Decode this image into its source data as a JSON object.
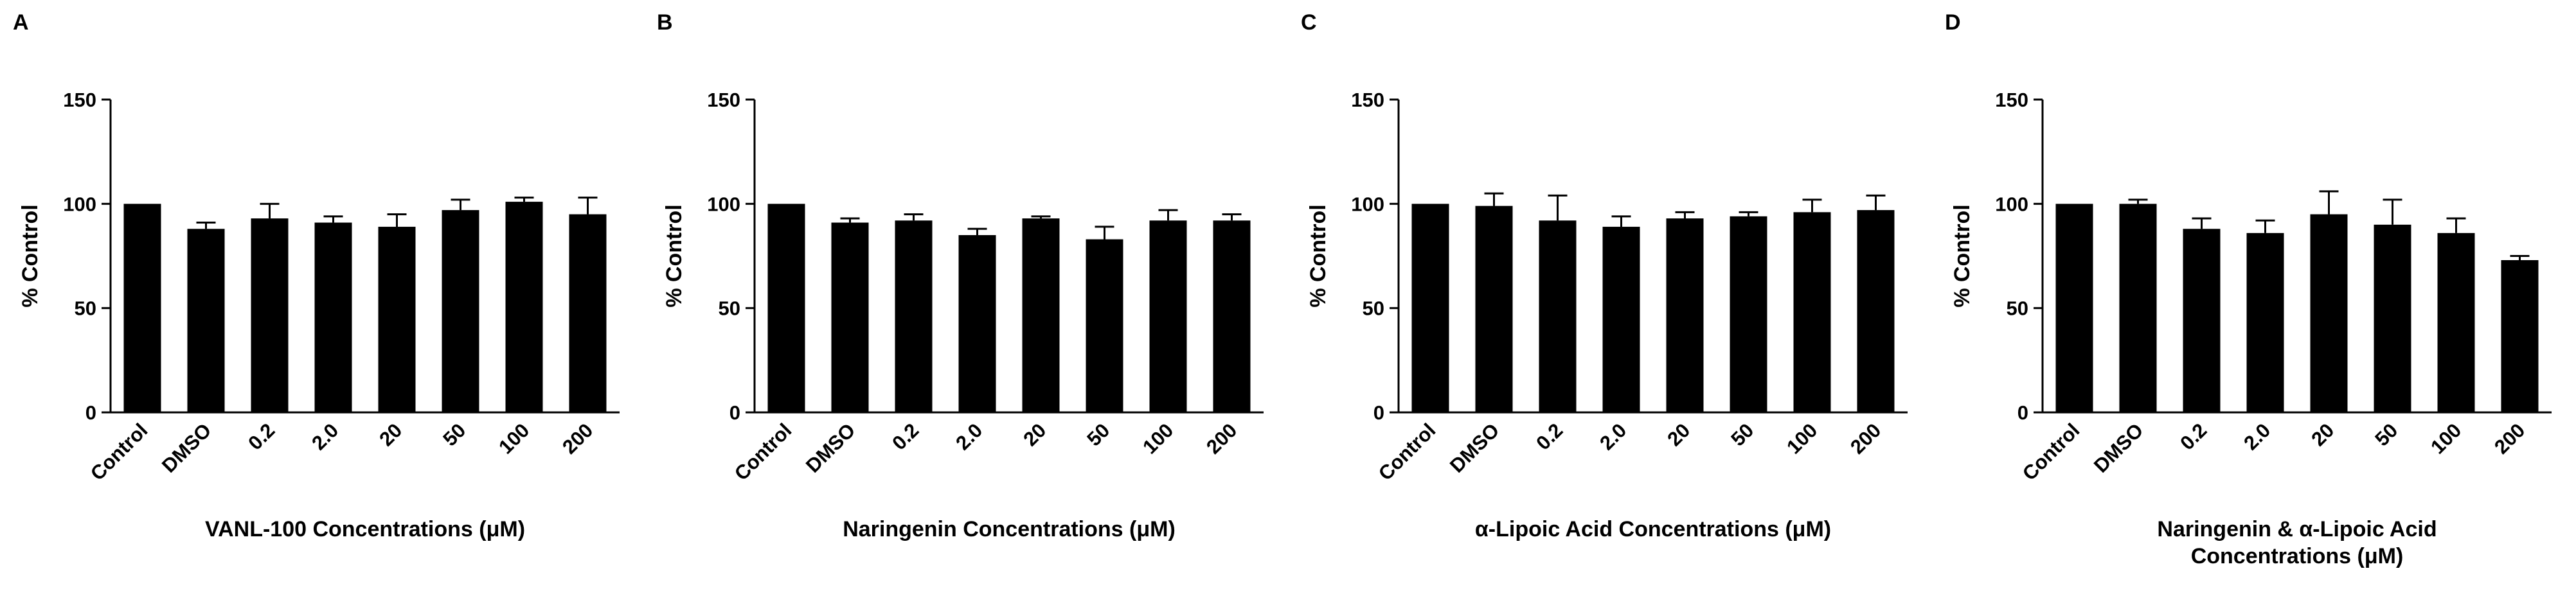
{
  "chart_data": [
    {
      "panel": "A",
      "type": "bar",
      "categories": [
        "Control",
        "DMSO",
        "0.2",
        "2.0",
        "20",
        "50",
        "100",
        "200"
      ],
      "values": [
        100,
        88,
        93,
        91,
        89,
        97,
        101,
        95
      ],
      "errors": [
        0,
        3,
        7,
        3,
        6,
        5,
        2,
        8
      ],
      "xlabel": [
        "VANL-100 Concentrations (μM)"
      ],
      "ylabel": "% Control",
      "ylim": [
        0,
        150
      ],
      "yticks": [
        "0",
        "50",
        "100",
        "150"
      ],
      "colors": {
        "bar": "#000000"
      }
    },
    {
      "panel": "B",
      "type": "bar",
      "categories": [
        "Control",
        "DMSO",
        "0.2",
        "2.0",
        "20",
        "50",
        "100",
        "200"
      ],
      "values": [
        100,
        91,
        92,
        85,
        93,
        83,
        92,
        92
      ],
      "errors": [
        0,
        2,
        3,
        3,
        1,
        6,
        5,
        3
      ],
      "xlabel": [
        "Naringenin Concentrations (μM)"
      ],
      "ylabel": "% Control",
      "ylim": [
        0,
        150
      ],
      "yticks": [
        "0",
        "50",
        "100",
        "150"
      ],
      "colors": {
        "bar": "#000000"
      }
    },
    {
      "panel": "C",
      "type": "bar",
      "categories": [
        "Control",
        "DMSO",
        "0.2",
        "2.0",
        "20",
        "50",
        "100",
        "200"
      ],
      "values": [
        100,
        99,
        92,
        89,
        93,
        94,
        96,
        97
      ],
      "errors": [
        0,
        6,
        12,
        5,
        3,
        2,
        6,
        7
      ],
      "xlabel": [
        "α-Lipoic Acid Concentrations (μM)"
      ],
      "ylabel": "% Control",
      "ylim": [
        0,
        150
      ],
      "yticks": [
        "0",
        "50",
        "100",
        "150"
      ],
      "colors": {
        "bar": "#000000"
      }
    },
    {
      "panel": "D",
      "type": "bar",
      "categories": [
        "Control",
        "DMSO",
        "0.2",
        "2.0",
        "20",
        "50",
        "100",
        "200"
      ],
      "values": [
        100,
        100,
        88,
        86,
        95,
        90,
        86,
        73
      ],
      "errors": [
        0,
        2,
        5,
        6,
        11,
        12,
        7,
        2
      ],
      "xlabel": [
        "Naringenin & α-Lipoic Acid",
        "Concentrations (μM)"
      ],
      "ylabel": "% Control",
      "ylim": [
        0,
        150
      ],
      "yticks": [
        "0",
        "50",
        "100",
        "150"
      ],
      "colors": {
        "bar": "#000000"
      }
    }
  ]
}
